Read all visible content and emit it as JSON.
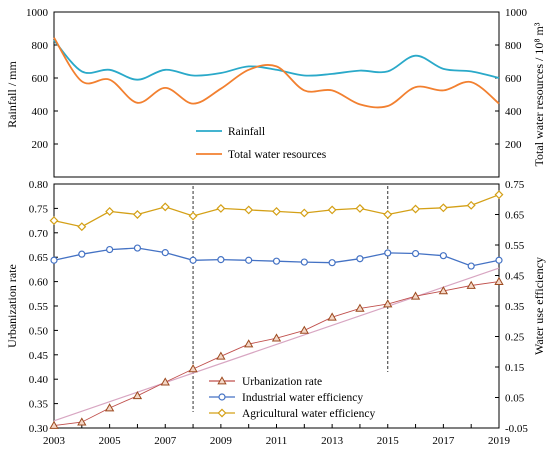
{
  "chart_data": [
    {
      "type": "line",
      "xlim": [
        2003,
        2019
      ],
      "x_ticks": [],
      "y_left": {
        "label": "Rainfall / mm",
        "ylim": [
          0,
          1000
        ],
        "ticks": [
          "200",
          "400",
          "600",
          "800",
          "1000"
        ]
      },
      "y_right": {
        "label": "Total water resources / 10⁸ m³",
        "ylim": [
          0,
          1000
        ],
        "ticks": [
          "200",
          "400",
          "600",
          "800",
          "1000"
        ]
      },
      "legend_position": "center",
      "series": [
        {
          "name": "Rainfall",
          "axis": "left",
          "color": "#2aa9c9",
          "x": [
            2003,
            2004,
            2005,
            2006,
            2007,
            2008,
            2009,
            2010,
            2011,
            2012,
            2013,
            2014,
            2015,
            2016,
            2017,
            2018,
            2019
          ],
          "values": [
            830,
            640,
            650,
            590,
            650,
            615,
            630,
            670,
            650,
            615,
            625,
            645,
            640,
            735,
            655,
            640,
            600
          ]
        },
        {
          "name": "Total water resources",
          "axis": "right",
          "color": "#f28030",
          "x": [
            2003,
            2004,
            2005,
            2006,
            2007,
            2008,
            2009,
            2010,
            2011,
            2012,
            2013,
            2014,
            2015,
            2016,
            2017,
            2018,
            2019
          ],
          "values": [
            845,
            580,
            590,
            450,
            540,
            445,
            535,
            650,
            670,
            525,
            525,
            440,
            430,
            545,
            525,
            575,
            445
          ]
        }
      ]
    },
    {
      "type": "line",
      "xlim": [
        2003,
        2019
      ],
      "x_ticks": [
        "2003",
        "2005",
        "2007",
        "2009",
        "2011",
        "2013",
        "2015",
        "2017",
        "2019"
      ],
      "y_left": {
        "label": "Urbanization rate",
        "ylim": [
          0.3,
          0.8
        ],
        "ticks": [
          "0.30",
          "0.35",
          "0.40",
          "0.45",
          "0.50",
          "0.55",
          "0.60",
          "0.65",
          "0.70",
          "0.75",
          "0.80"
        ]
      },
      "y_right": {
        "label": "Water use efficiency",
        "ylim": [
          -0.05,
          0.75
        ],
        "ticks": [
          "-0.05",
          "0.05",
          "0.15",
          "0.25",
          "0.35",
          "0.45",
          "0.55",
          "0.65",
          "0.75"
        ]
      },
      "vertical_lines_x": [
        2008,
        2015
      ],
      "legend_position": "bottom-center",
      "series": [
        {
          "name": "Urbanization rate",
          "axis": "left",
          "color": "#c0504d",
          "marker": "triangle",
          "x": [
            2003,
            2004,
            2005,
            2006,
            2007,
            2008,
            2009,
            2010,
            2011,
            2012,
            2013,
            2014,
            2015,
            2016,
            2017,
            2018,
            2019
          ],
          "values": [
            0.305,
            0.312,
            0.341,
            0.366,
            0.394,
            0.421,
            0.447,
            0.472,
            0.484,
            0.5,
            0.527,
            0.545,
            0.554,
            0.57,
            0.581,
            0.592,
            0.6
          ]
        },
        {
          "name": "Industrial water efficiency",
          "axis": "right",
          "color": "#4472c4",
          "marker": "circle",
          "x": [
            2003,
            2004,
            2005,
            2006,
            2007,
            2008,
            2009,
            2010,
            2011,
            2012,
            2013,
            2014,
            2015,
            2016,
            2017,
            2018,
            2019
          ],
          "values": [
            0.5,
            0.52,
            0.535,
            0.54,
            0.525,
            0.5,
            0.502,
            0.5,
            0.497,
            0.494,
            0.492,
            0.505,
            0.524,
            0.522,
            0.515,
            0.481,
            0.5
          ]
        },
        {
          "name": "Agricultural water efficiency",
          "axis": "right",
          "color": "#d4a017",
          "marker": "diamond",
          "x": [
            2003,
            2004,
            2005,
            2006,
            2007,
            2008,
            2009,
            2010,
            2011,
            2012,
            2013,
            2014,
            2015,
            2016,
            2017,
            2018,
            2019
          ],
          "values": [
            0.63,
            0.61,
            0.66,
            0.65,
            0.675,
            0.645,
            0.67,
            0.665,
            0.66,
            0.655,
            0.665,
            0.67,
            0.65,
            0.668,
            0.672,
            0.68,
            0.715
          ]
        }
      ]
    }
  ]
}
